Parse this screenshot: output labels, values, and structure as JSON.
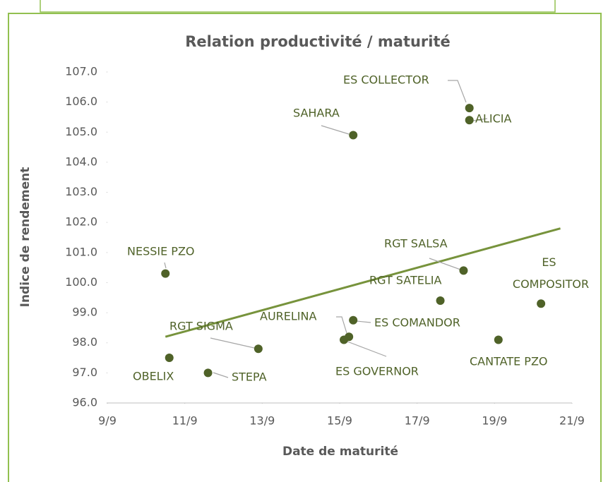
{
  "chart_data": {
    "type": "scatter",
    "title": "Relation productivité / maturité",
    "x_label": "Date de maturité",
    "y_label": "Indice de rendement",
    "color": "#4f6228",
    "trend_color": "#77933c",
    "xlim": [
      9,
      21
    ],
    "xticks": [
      {
        "value": 9,
        "label": "9/9"
      },
      {
        "value": 11,
        "label": "11/9"
      },
      {
        "value": 13,
        "label": "13/9"
      },
      {
        "value": 15,
        "label": "15/9"
      },
      {
        "value": 17,
        "label": "17/9"
      },
      {
        "value": 19,
        "label": "19/9"
      },
      {
        "value": 21,
        "label": "21/9"
      }
    ],
    "ylim": [
      96,
      107
    ],
    "yticks": [
      {
        "value": 96,
        "label": "96.0"
      },
      {
        "value": 97,
        "label": "97.0"
      },
      {
        "value": 98,
        "label": "98.0"
      },
      {
        "value": 99,
        "label": "99.0"
      },
      {
        "value": 100,
        "label": "100.0"
      },
      {
        "value": 101,
        "label": "101.0"
      },
      {
        "value": 102,
        "label": "102.0"
      },
      {
        "value": 103,
        "label": "103.0"
      },
      {
        "value": 104,
        "label": "104.0"
      },
      {
        "value": 105,
        "label": "105.0"
      },
      {
        "value": 106,
        "label": "106.0"
      },
      {
        "value": 107,
        "label": "107.0"
      }
    ],
    "points": [
      {
        "name": "NESSIE PZO",
        "x": 10.5,
        "y": 100.3
      },
      {
        "name": "OBELIX",
        "x": 10.6,
        "y": 97.5
      },
      {
        "name": "STEPA",
        "x": 11.6,
        "y": 97.0
      },
      {
        "name": "RGT SIGMA",
        "x": 12.9,
        "y": 97.8
      },
      {
        "name": "SAHARA",
        "x": 15.35,
        "y": 104.9
      },
      {
        "name": "ES COLLECTOR",
        "x": 18.35,
        "y": 105.8
      },
      {
        "name": "ALICIA",
        "x": 18.35,
        "y": 105.4
      },
      {
        "name": "RGT SALSA",
        "x": 18.2,
        "y": 100.4
      },
      {
        "name": "RGT SATELIA",
        "x": 17.6,
        "y": 99.4
      },
      {
        "name": "ES COMPOSITOR",
        "x": 20.2,
        "y": 99.3
      },
      {
        "name": "CANTATE PZO",
        "x": 19.1,
        "y": 98.1
      },
      {
        "name": "AURELINA",
        "x": 15.24,
        "y": 98.2
      },
      {
        "name": "ES COMANDOR",
        "x": 15.35,
        "y": 98.75
      },
      {
        "name": "ES GOVERNOR",
        "x": 15.11,
        "y": 98.1
      }
    ],
    "trendline": {
      "x": [
        10.5,
        20.7
      ],
      "y": [
        98.2,
        101.8
      ]
    }
  }
}
